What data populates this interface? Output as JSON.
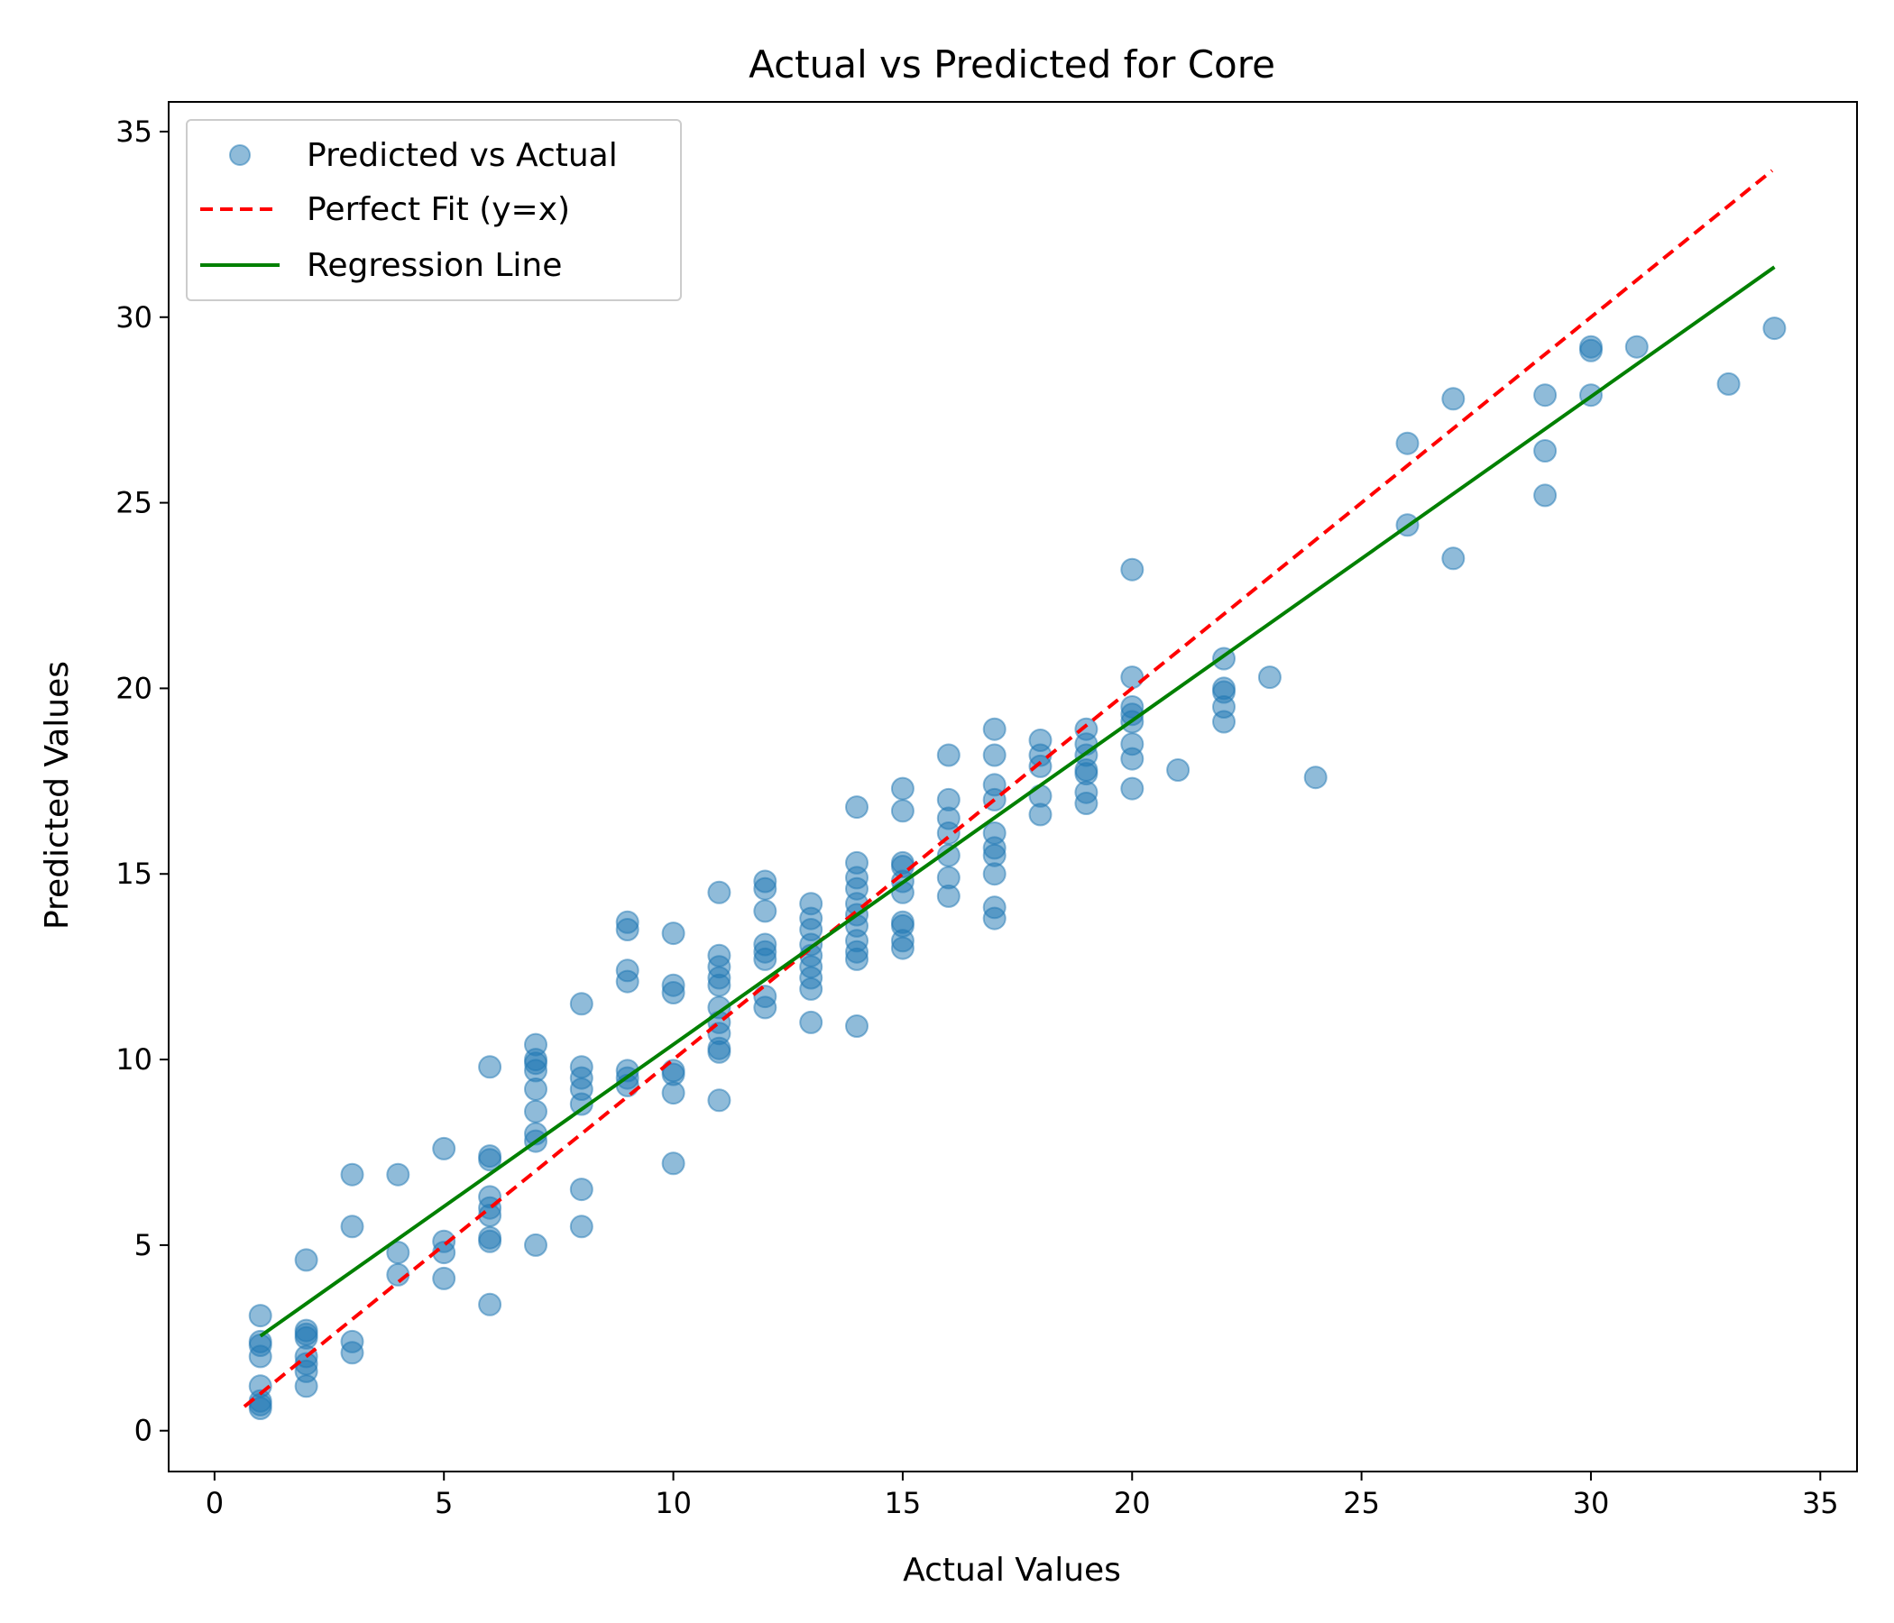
{
  "chart_data": {
    "type": "scatter",
    "title": "Actual vs Predicted for Core",
    "xlabel": "Actual Values",
    "ylabel": "Predicted Values",
    "xlim": [
      -1,
      35.8
    ],
    "ylim": [
      -1.1,
      35.8
    ],
    "xticks": [
      0,
      5,
      10,
      15,
      20,
      25,
      30,
      35
    ],
    "yticks": [
      0,
      5,
      10,
      15,
      20,
      25,
      30,
      35
    ],
    "grid": false,
    "legend_position": "top-left",
    "colors": {
      "points": "#1f77b4",
      "perfect_fit": "#ff0000",
      "regression": "#008000"
    },
    "legend": [
      {
        "label": "Predicted vs Actual",
        "kind": "marker"
      },
      {
        "label": "Perfect Fit (y=x)",
        "kind": "dashed"
      },
      {
        "label": "Regression Line",
        "kind": "solid"
      }
    ],
    "perfect_fit_line": {
      "x": [
        0.65,
        33.95
      ],
      "y": [
        0.65,
        33.95
      ]
    },
    "regression_line": {
      "x": [
        1,
        34
      ],
      "y": [
        2.55,
        31.35
      ]
    },
    "series": [
      {
        "name": "Predicted vs Actual",
        "points": [
          [
            1,
            3.1
          ],
          [
            1,
            2.4
          ],
          [
            1,
            2.3
          ],
          [
            1,
            2.0
          ],
          [
            1,
            1.2
          ],
          [
            1,
            0.8
          ],
          [
            1,
            0.7
          ],
          [
            1,
            0.6
          ],
          [
            2,
            4.6
          ],
          [
            2,
            2.7
          ],
          [
            2,
            2.6
          ],
          [
            2,
            2.5
          ],
          [
            2,
            2.0
          ],
          [
            2,
            1.8
          ],
          [
            2,
            1.6
          ],
          [
            2,
            1.2
          ],
          [
            3,
            6.9
          ],
          [
            3,
            5.5
          ],
          [
            3,
            2.4
          ],
          [
            3,
            2.1
          ],
          [
            4,
            6.9
          ],
          [
            4,
            4.8
          ],
          [
            4,
            4.2
          ],
          [
            5,
            7.6
          ],
          [
            5,
            5.1
          ],
          [
            5,
            4.8
          ],
          [
            5,
            4.1
          ],
          [
            6,
            9.8
          ],
          [
            6,
            7.4
          ],
          [
            6,
            7.3
          ],
          [
            6,
            6.3
          ],
          [
            6,
            6.0
          ],
          [
            6,
            5.8
          ],
          [
            6,
            5.2
          ],
          [
            6,
            5.1
          ],
          [
            6,
            3.4
          ],
          [
            7,
            10.4
          ],
          [
            7,
            10.0
          ],
          [
            7,
            9.9
          ],
          [
            7,
            9.7
          ],
          [
            7,
            9.2
          ],
          [
            7,
            8.6
          ],
          [
            7,
            8.0
          ],
          [
            7,
            7.8
          ],
          [
            7,
            5.0
          ],
          [
            8,
            11.5
          ],
          [
            8,
            9.8
          ],
          [
            8,
            9.5
          ],
          [
            8,
            9.2
          ],
          [
            8,
            8.8
          ],
          [
            8,
            6.5
          ],
          [
            8,
            5.5
          ],
          [
            9,
            13.7
          ],
          [
            9,
            13.5
          ],
          [
            9,
            12.4
          ],
          [
            9,
            12.1
          ],
          [
            9,
            9.7
          ],
          [
            9,
            9.5
          ],
          [
            9,
            9.3
          ],
          [
            10,
            13.4
          ],
          [
            10,
            12.0
          ],
          [
            10,
            11.8
          ],
          [
            10,
            9.7
          ],
          [
            10,
            9.6
          ],
          [
            10,
            9.1
          ],
          [
            10,
            7.2
          ],
          [
            11,
            14.5
          ],
          [
            11,
            12.8
          ],
          [
            11,
            12.5
          ],
          [
            11,
            12.2
          ],
          [
            11,
            12.0
          ],
          [
            11,
            11.4
          ],
          [
            11,
            11.0
          ],
          [
            11,
            10.7
          ],
          [
            11,
            10.3
          ],
          [
            11,
            10.2
          ],
          [
            11,
            8.9
          ],
          [
            12,
            14.8
          ],
          [
            12,
            14.6
          ],
          [
            12,
            14.0
          ],
          [
            12,
            13.1
          ],
          [
            12,
            12.9
          ],
          [
            12,
            12.7
          ],
          [
            12,
            11.7
          ],
          [
            12,
            11.4
          ],
          [
            13,
            14.2
          ],
          [
            13,
            13.8
          ],
          [
            13,
            13.5
          ],
          [
            13,
            13.1
          ],
          [
            13,
            12.8
          ],
          [
            13,
            12.5
          ],
          [
            13,
            12.2
          ],
          [
            13,
            11.9
          ],
          [
            13,
            11.0
          ],
          [
            14,
            16.8
          ],
          [
            14,
            15.3
          ],
          [
            14,
            14.9
          ],
          [
            14,
            14.6
          ],
          [
            14,
            14.2
          ],
          [
            14,
            13.9
          ],
          [
            14,
            13.6
          ],
          [
            14,
            13.2
          ],
          [
            14,
            12.9
          ],
          [
            14,
            12.7
          ],
          [
            14,
            10.9
          ],
          [
            15,
            17.3
          ],
          [
            15,
            16.7
          ],
          [
            15,
            15.3
          ],
          [
            15,
            15.2
          ],
          [
            15,
            14.8
          ],
          [
            15,
            14.5
          ],
          [
            15,
            13.7
          ],
          [
            15,
            13.6
          ],
          [
            15,
            13.2
          ],
          [
            15,
            13.0
          ],
          [
            16,
            18.2
          ],
          [
            16,
            17.0
          ],
          [
            16,
            16.5
          ],
          [
            16,
            16.1
          ],
          [
            16,
            15.5
          ],
          [
            16,
            14.9
          ],
          [
            16,
            14.4
          ],
          [
            17,
            18.9
          ],
          [
            17,
            18.2
          ],
          [
            17,
            17.4
          ],
          [
            17,
            17.0
          ],
          [
            17,
            16.1
          ],
          [
            17,
            15.7
          ],
          [
            17,
            15.5
          ],
          [
            17,
            15.0
          ],
          [
            17,
            14.1
          ],
          [
            17,
            13.8
          ],
          [
            18,
            18.6
          ],
          [
            18,
            18.2
          ],
          [
            18,
            17.9
          ],
          [
            18,
            17.1
          ],
          [
            18,
            16.6
          ],
          [
            19,
            18.9
          ],
          [
            19,
            18.5
          ],
          [
            19,
            18.2
          ],
          [
            19,
            17.8
          ],
          [
            19,
            17.7
          ],
          [
            19,
            17.2
          ],
          [
            19,
            16.9
          ],
          [
            20,
            23.2
          ],
          [
            20,
            20.3
          ],
          [
            20,
            19.5
          ],
          [
            20,
            19.3
          ],
          [
            20,
            19.1
          ],
          [
            20,
            18.5
          ],
          [
            20,
            18.1
          ],
          [
            20,
            17.3
          ],
          [
            21,
            17.8
          ],
          [
            22,
            20.8
          ],
          [
            22,
            20.0
          ],
          [
            22,
            19.9
          ],
          [
            22,
            19.5
          ],
          [
            22,
            19.1
          ],
          [
            23,
            20.3
          ],
          [
            24,
            17.6
          ],
          [
            26,
            26.6
          ],
          [
            26,
            24.4
          ],
          [
            27,
            27.8
          ],
          [
            27,
            23.5
          ],
          [
            29,
            27.9
          ],
          [
            29,
            26.4
          ],
          [
            29,
            25.2
          ],
          [
            30,
            29.2
          ],
          [
            30,
            29.1
          ],
          [
            30,
            27.9
          ],
          [
            31,
            29.2
          ],
          [
            33,
            28.2
          ],
          [
            34,
            29.7
          ]
        ]
      }
    ]
  }
}
